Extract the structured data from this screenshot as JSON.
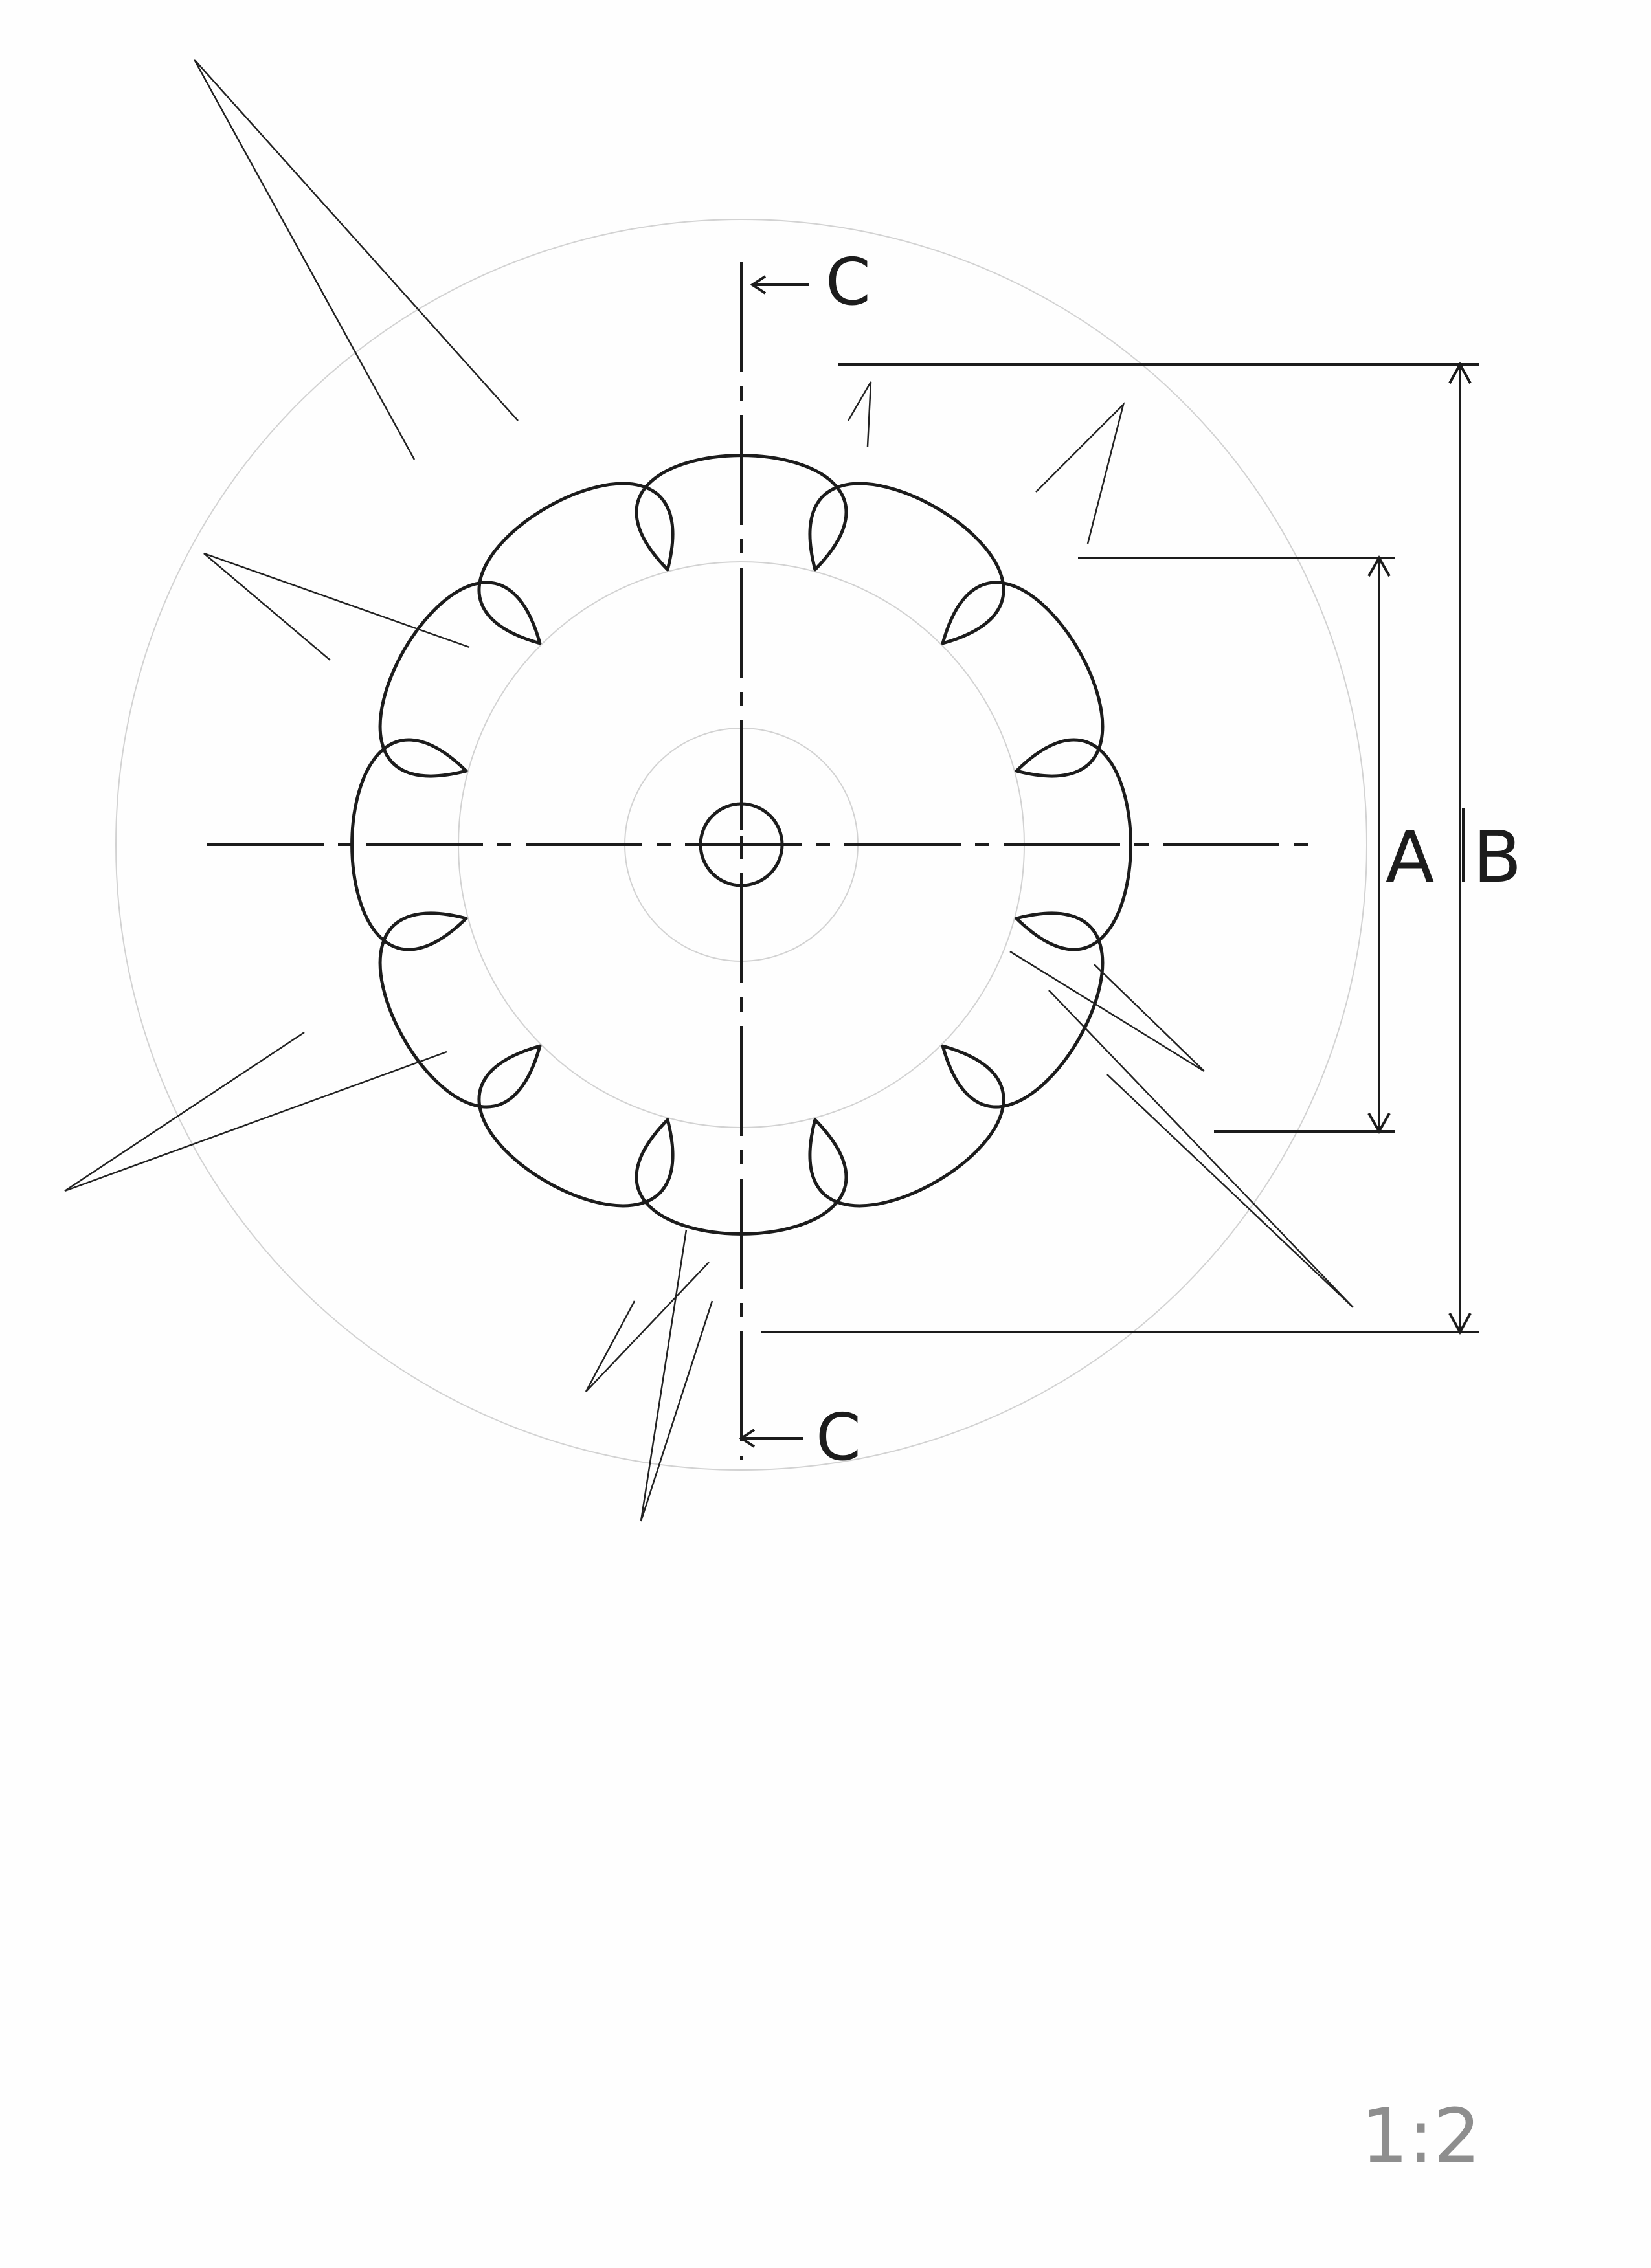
{
  "drawing": {
    "section_label_top": "C",
    "section_label_bottom": "C",
    "dimension_a": "A",
    "dimension_b": "B",
    "scale": "1:2",
    "petal_count": 12
  },
  "colors": {
    "ink": "#1c1c1c",
    "construction": "#c9c9c9",
    "paper": "#fefefe"
  }
}
